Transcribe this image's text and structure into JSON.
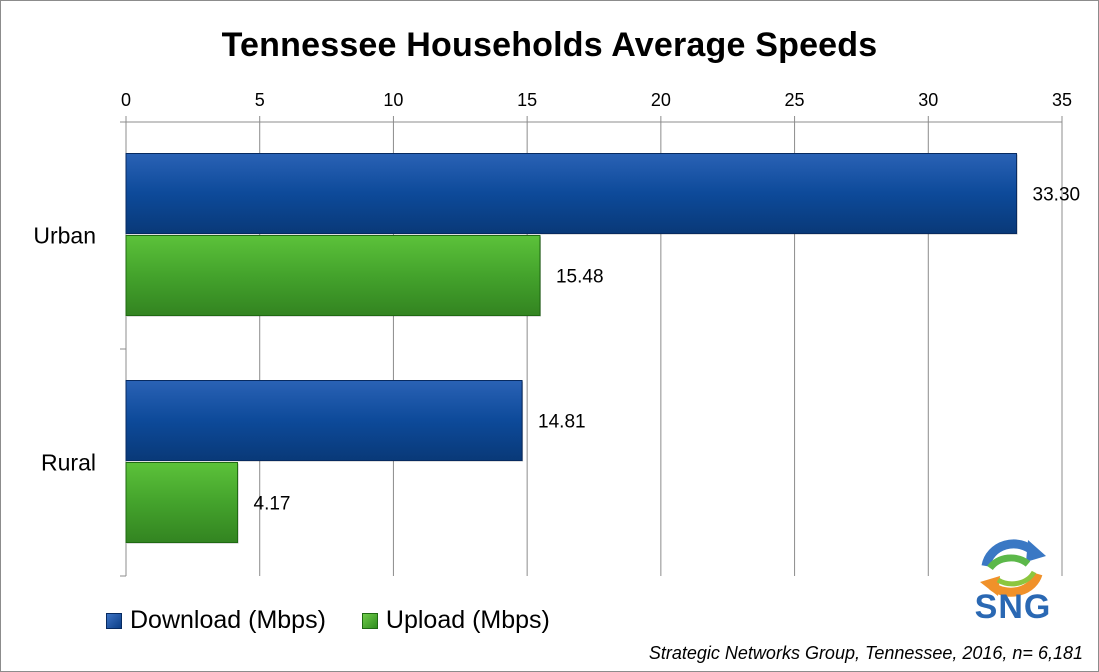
{
  "chart_data": {
    "type": "bar",
    "orientation": "horizontal",
    "title": "Tennessee Households Average Speeds",
    "categories": [
      "Urban",
      "Rural"
    ],
    "series": [
      {
        "name": "Download (Mbps)",
        "values": [
          33.3,
          14.81
        ],
        "color": "#0d4a9a"
      },
      {
        "name": "Upload (Mbps)",
        "values": [
          15.48,
          4.17
        ],
        "color": "#44a32c"
      }
    ],
    "data_labels": [
      [
        "33.30",
        "14.81"
      ],
      [
        "15.48",
        "4.17"
      ]
    ],
    "xlim": [
      0,
      35
    ],
    "xticks": [
      0,
      5,
      10,
      15,
      20,
      25,
      30,
      35
    ],
    "xaxis_position": "top",
    "grid": true,
    "legend_placement": "bottom-left"
  },
  "source_note": "Strategic Networks Group, Tennessee, 2016, n= 6,181",
  "logo": {
    "text": "SNG",
    "icon": "sng-arrows-logo-icon"
  }
}
